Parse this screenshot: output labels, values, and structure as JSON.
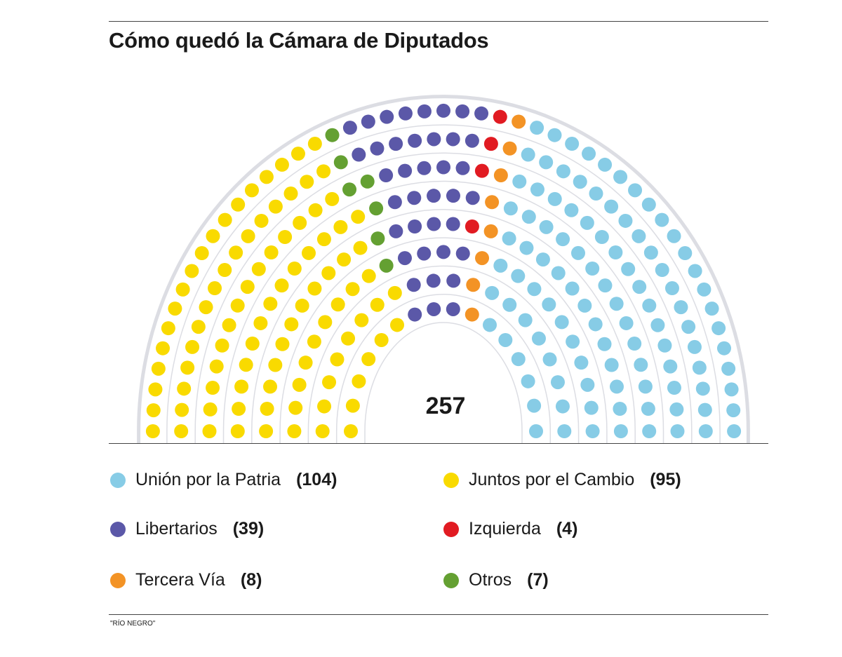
{
  "title": "Cómo quedó la Cámara de Diputados",
  "source": "\"RÍO NEGRO\"",
  "chart_data": {
    "type": "parliament",
    "total_label": "257",
    "series": [
      {
        "name": "Unión por la Patria",
        "value": 104,
        "label": "(104)",
        "color": "#87CCE6"
      },
      {
        "name": "Juntos por el Cambio",
        "value": 95,
        "label": "(95)",
        "color": "#F9DA00"
      },
      {
        "name": "Libertarios",
        "value": 39,
        "label": "(39)",
        "color": "#5B58A8"
      },
      {
        "name": "Izquierda",
        "value": 4,
        "label": "(4)",
        "color": "#E11B22"
      },
      {
        "name": "Tercera Vía",
        "value": 8,
        "label": "(8)",
        "color": "#F39325"
      },
      {
        "name": "Otros",
        "value": 7,
        "label": "(7)",
        "color": "#64A032"
      }
    ],
    "seat_order_left_to_right": [
      "Juntos por el Cambio",
      "Otros",
      "Libertarios",
      "Izquierda",
      "Tercera Vía",
      "Unión por la Patria"
    ]
  }
}
